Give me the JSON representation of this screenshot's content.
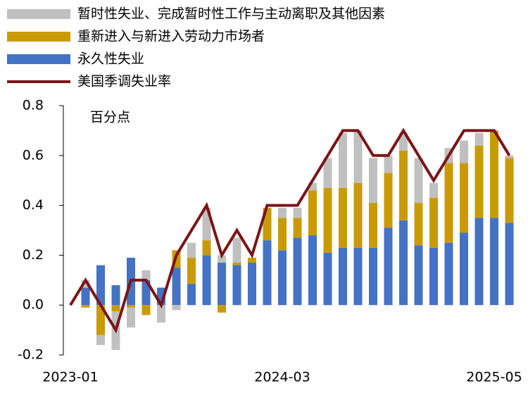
{
  "chart_data": {
    "type": "stacked-bar-line",
    "annotation": "百分点",
    "categories": [
      "2023-01",
      null,
      null,
      null,
      null,
      null,
      null,
      null,
      null,
      null,
      null,
      null,
      null,
      null,
      "2024-03",
      null,
      null,
      null,
      null,
      null,
      null,
      null,
      null,
      null,
      null,
      null,
      null,
      null,
      "2025-05",
      null
    ],
    "series": [
      {
        "name": "暂时性失业、完成暂时性工作与主动离职及其他因素",
        "color": "#c0c0c0",
        "kind": "bar",
        "values": [
          0,
          0.03,
          -0.04,
          -0.155,
          -0.08,
          0.04,
          -0.07,
          -0.02,
          0.06,
          0.13,
          0.03,
          0.1,
          0.0,
          0.0,
          0.04,
          0.04,
          0.03,
          0.12,
          0.22,
          0.21,
          0.18,
          0.07,
          0.07,
          0.18,
          0.06,
          0.06,
          0.09,
          0.05,
          0.0,
          0.01
        ]
      },
      {
        "name": "重新进入与新进入劳动力市场者",
        "color": "#c99a06",
        "kind": "bar",
        "values": [
          0,
          -0.01,
          -0.12,
          -0.025,
          -0.01,
          -0.04,
          0,
          0.07,
          0.105,
          0.06,
          -0.03,
          0.01,
          0.02,
          0.13,
          0.13,
          0.08,
          0.18,
          0.26,
          0.24,
          0.26,
          0.18,
          0.22,
          0.28,
          0.17,
          0.2,
          0.32,
          0.28,
          0.29,
          0.35,
          0.26
        ]
      },
      {
        "name": "永久性失业",
        "color": "#4472c4",
        "kind": "bar",
        "values": [
          0,
          0.07,
          0.16,
          0.08,
          0.19,
          0.1,
          0.07,
          0.15,
          0.085,
          0.2,
          0.17,
          0.16,
          0.17,
          0.26,
          0.22,
          0.27,
          0.28,
          0.21,
          0.23,
          0.23,
          0.23,
          0.31,
          0.34,
          0.24,
          0.23,
          0.25,
          0.29,
          0.35,
          0.35,
          0.33
        ]
      },
      {
        "name": "美国季调失业率",
        "color": "#7b1416",
        "kind": "line",
        "values": [
          0,
          0.1,
          0,
          -0.1,
          0.1,
          0.1,
          0,
          0.2,
          0.3,
          0.4,
          0.2,
          0.3,
          0.2,
          0.4,
          0.4,
          0.4,
          0.5,
          0.6,
          0.7,
          0.7,
          0.6,
          0.6,
          0.7,
          0.6,
          0.5,
          0.6,
          0.7,
          0.7,
          0.7,
          0.6
        ]
      }
    ],
    "ylim": [
      -0.2,
      0.8
    ],
    "yticks": [
      -0.2,
      {
        "value": 0,
        "label": "0.0"
      },
      0.2,
      0.4,
      0.6,
      0.8
    ]
  }
}
